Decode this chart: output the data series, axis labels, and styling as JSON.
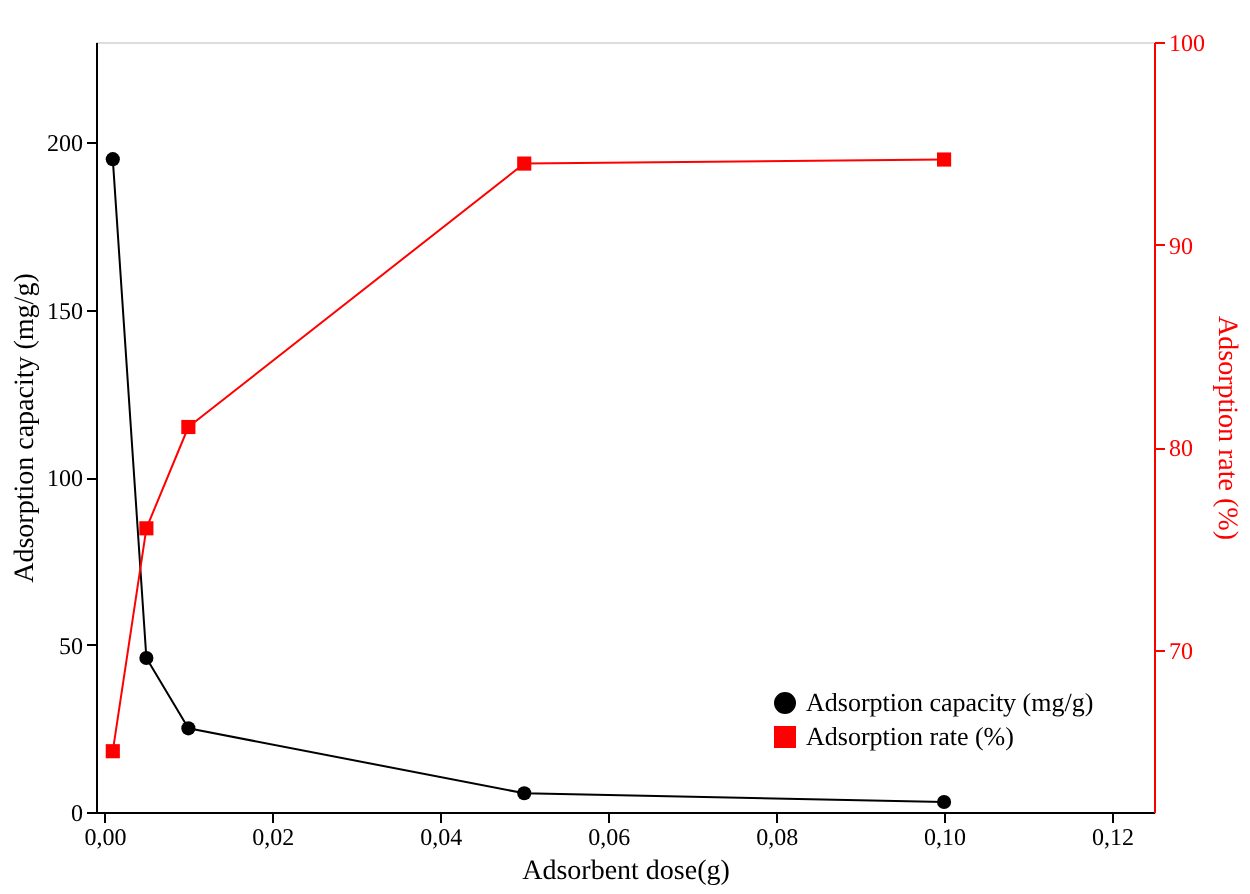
{
  "chart_data": {
    "type": "line",
    "xlabel": "Adsorbent dose(g)",
    "ylabel": "Adsorption capacity (mg/g)",
    "y2label": "Adsorption rate (%)",
    "x": [
      0.001,
      0.005,
      0.01,
      0.05,
      0.1
    ],
    "series": [
      {
        "name": "Adsorption capacity (mg/g)",
        "color": "#000000",
        "marker": "circle",
        "values": [
          195,
          46,
          25,
          5.6,
          3
        ]
      },
      {
        "name": "Adsorption rate (%)",
        "color": "#ff0000",
        "marker": "square",
        "axis": "y2",
        "values": [
          65,
          76,
          81,
          94,
          94.2
        ]
      }
    ],
    "xlim": [
      -0.001,
      0.125
    ],
    "xticks": [
      {
        "value": 0,
        "label": "0,00"
      },
      {
        "value": 0.02,
        "label": "0,02"
      },
      {
        "value": 0.04,
        "label": "0,04"
      },
      {
        "value": 0.06,
        "label": "0,06"
      },
      {
        "value": 0.08,
        "label": "0,08"
      },
      {
        "value": 0.1,
        "label": "0,10"
      },
      {
        "value": 0.12,
        "label": "0,12"
      }
    ],
    "ylim": [
      0,
      230
    ],
    "yticks": [
      0,
      50,
      100,
      150,
      200
    ],
    "y2lim": [
      62,
      100
    ],
    "y2ticks": [
      70,
      80,
      90,
      100
    ],
    "grid": false,
    "legend": "bottom right"
  }
}
